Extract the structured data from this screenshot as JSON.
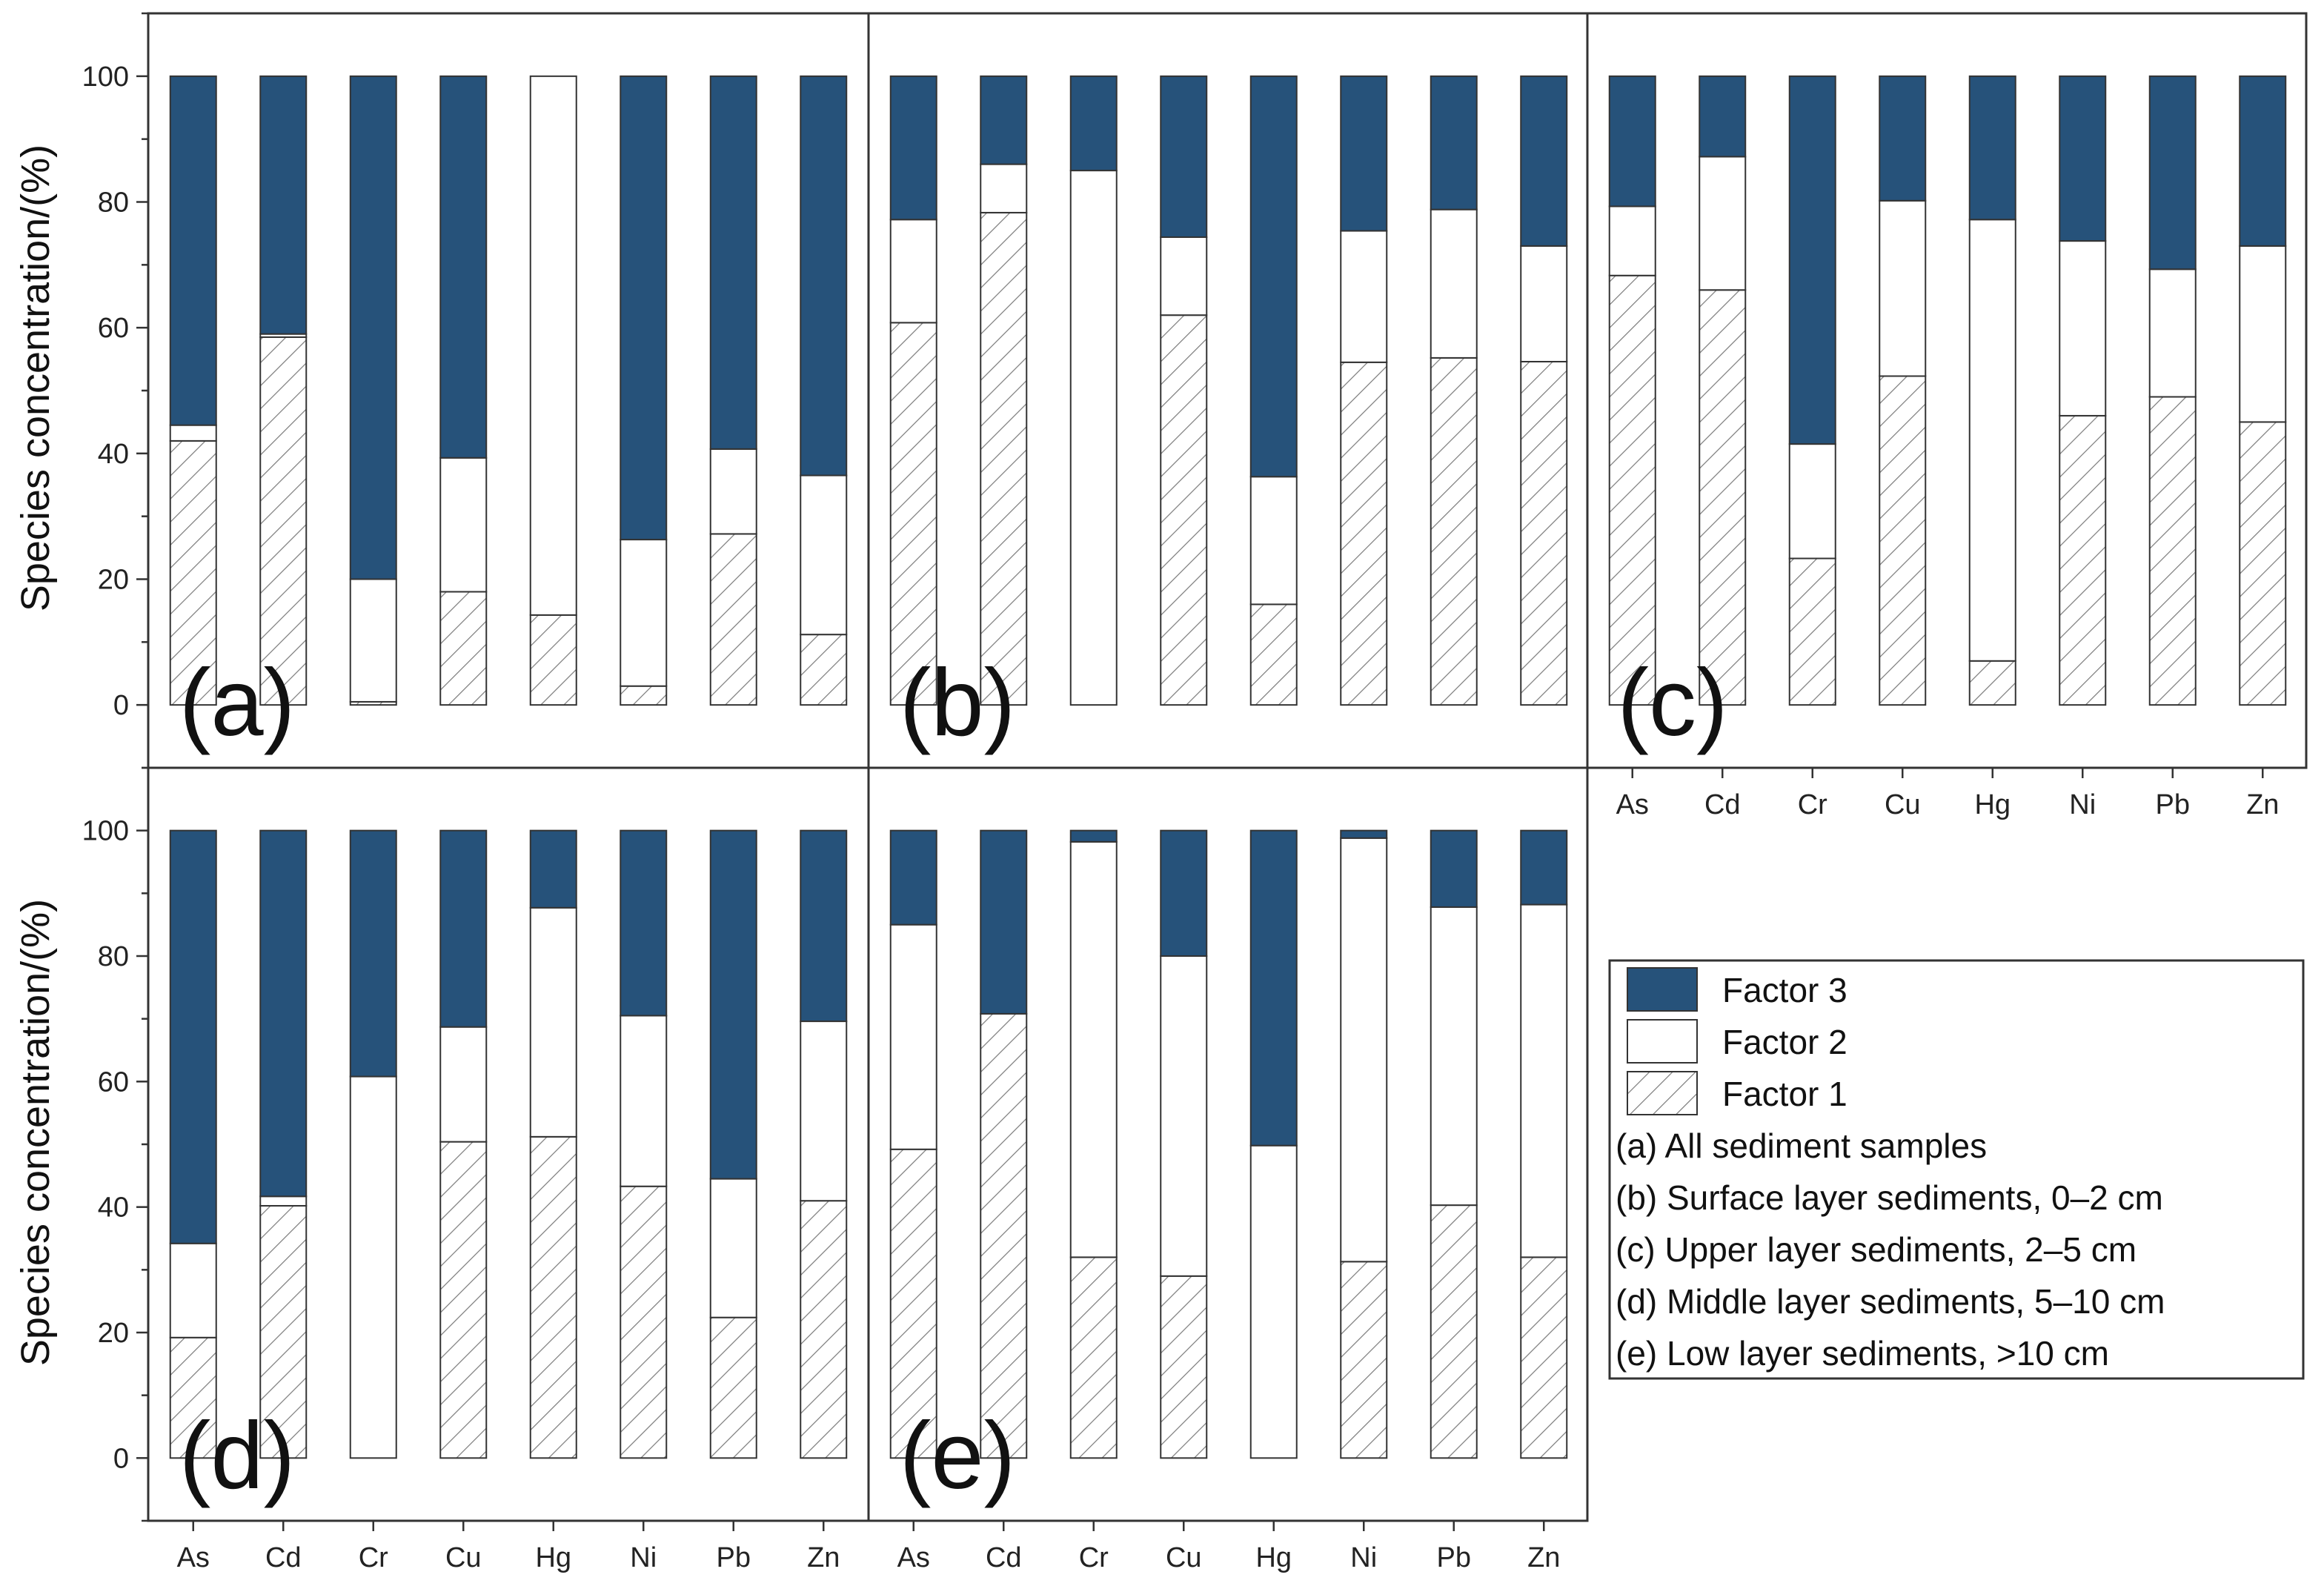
{
  "chart_data": {
    "type": "bar",
    "stacked": true,
    "ylabel": "Species concentration/(%)",
    "ylim": [
      -10,
      110
    ],
    "yticks": [
      0,
      20,
      40,
      60,
      80,
      100
    ],
    "categories": [
      "As",
      "Cd",
      "Cr",
      "Cu",
      "Hg",
      "Ni",
      "Pb",
      "Zn"
    ],
    "colors": {
      "factor3": "#26527a",
      "factor2": "#ffffff",
      "factor1_hatch": "#7a7a7a",
      "border": "#333333"
    },
    "legend": {
      "entries": [
        "Factor 3",
        "Factor 2",
        "Factor 1"
      ],
      "panel_descriptions": [
        "(a) All sediment samples",
        "(b) Surface layer sediments, 0–2 cm",
        "(c) Upper layer sediments, 2–5 cm",
        "(d) Middle layer sediments, 5–10 cm",
        "(e) Low layer sediments, >10 cm"
      ]
    },
    "panels": [
      {
        "id": "a",
        "label": "(a)",
        "factor1": [
          42,
          58.5,
          0.5,
          18,
          14.3,
          3,
          27.2,
          11.2
        ],
        "factor2": [
          2.5,
          0.5,
          19.5,
          21.3,
          85.7,
          23.3,
          13.5,
          25.3
        ]
      },
      {
        "id": "b",
        "label": "(b)",
        "factor1": [
          60.8,
          78.3,
          0,
          62,
          16,
          54.5,
          55.2,
          54.6
        ],
        "factor2": [
          16.4,
          7.7,
          85,
          12.4,
          20.3,
          20.9,
          23.6,
          18.4
        ]
      },
      {
        "id": "c",
        "label": "(c)",
        "factor1": [
          68.3,
          66,
          23.3,
          52.3,
          7,
          46,
          49,
          45
        ],
        "factor2": [
          11,
          21.2,
          18.2,
          27.9,
          70.2,
          27.8,
          20.3,
          28
        ]
      },
      {
        "id": "d",
        "label": "(d)",
        "factor1": [
          19.2,
          40.2,
          0,
          50.4,
          51.2,
          43.3,
          22.4,
          41
        ],
        "factor2": [
          15,
          1.5,
          60.8,
          18.3,
          36.5,
          27.2,
          22.1,
          28.6
        ]
      },
      {
        "id": "e",
        "label": "(e)",
        "factor1": [
          49.2,
          70.8,
          32,
          29,
          0,
          31.3,
          40.3,
          32
        ],
        "factor2": [
          35.8,
          0,
          66.2,
          51,
          49.8,
          67.5,
          47.5,
          56.2
        ]
      }
    ]
  }
}
